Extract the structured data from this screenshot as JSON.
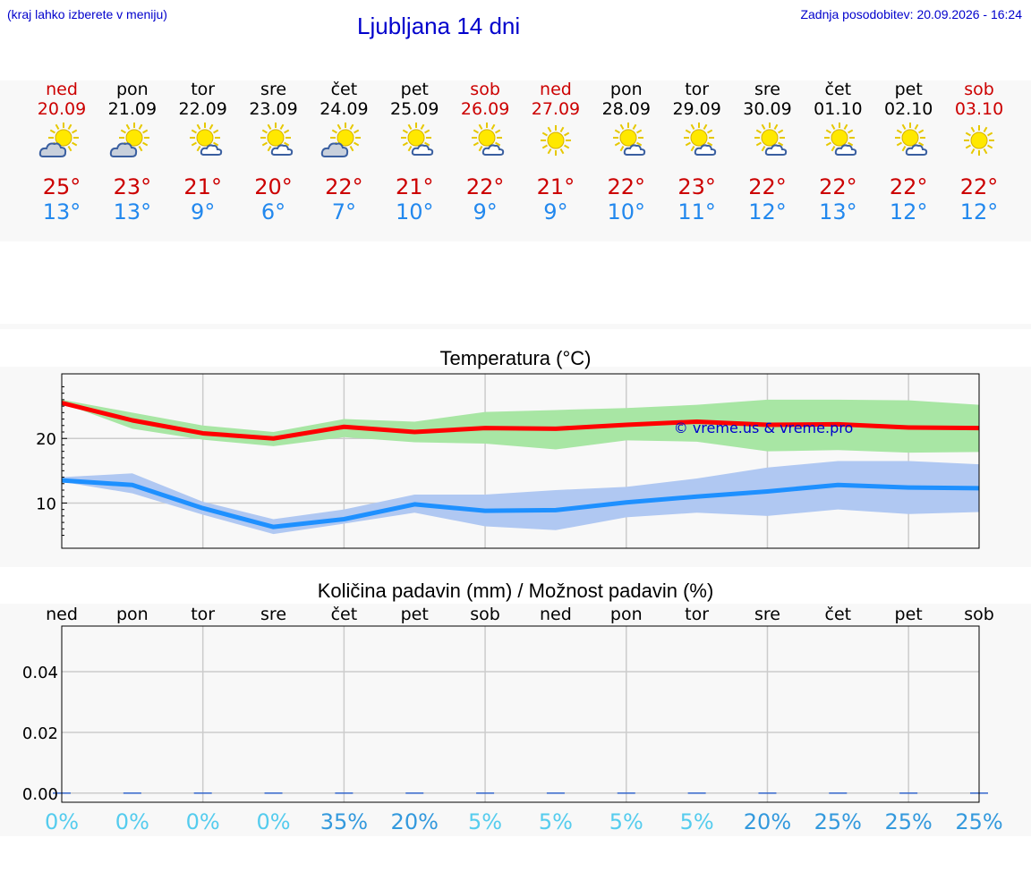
{
  "header": {
    "location_hint": "(kraj lahko izberete v meniju)",
    "title": "Ljubljana 14 dni",
    "updated": "Zadnja posodobitev: 20.09.2026 - 16:24"
  },
  "forecast": [
    {
      "day": "ned",
      "date": "20.09",
      "icon": "cloudy-sun-icon",
      "max": "25°",
      "min": "13°",
      "weekend": true
    },
    {
      "day": "pon",
      "date": "21.09",
      "icon": "cloudy-sun-icon",
      "max": "23°",
      "min": "13°",
      "weekend": false
    },
    {
      "day": "tor",
      "date": "22.09",
      "icon": "partly-cloudy-icon",
      "max": "21°",
      "min": "9°",
      "weekend": false
    },
    {
      "day": "sre",
      "date": "23.09",
      "icon": "partly-cloudy-icon",
      "max": "20°",
      "min": "6°",
      "weekend": false
    },
    {
      "day": "čet",
      "date": "24.09",
      "icon": "cloudy-sun-icon",
      "max": "22°",
      "min": "7°",
      "weekend": false
    },
    {
      "day": "pet",
      "date": "25.09",
      "icon": "partly-cloudy-icon",
      "max": "21°",
      "min": "10°",
      "weekend": false
    },
    {
      "day": "sob",
      "date": "26.09",
      "icon": "partly-cloudy-icon",
      "max": "22°",
      "min": "9°",
      "weekend": true
    },
    {
      "day": "ned",
      "date": "27.09",
      "icon": "sun-icon",
      "max": "21°",
      "min": "9°",
      "weekend": true
    },
    {
      "day": "pon",
      "date": "28.09",
      "icon": "partly-cloudy-icon",
      "max": "22°",
      "min": "10°",
      "weekend": false
    },
    {
      "day": "tor",
      "date": "29.09",
      "icon": "partly-cloudy-icon",
      "max": "23°",
      "min": "11°",
      "weekend": false
    },
    {
      "day": "sre",
      "date": "30.09",
      "icon": "partly-cloudy-icon",
      "max": "22°",
      "min": "12°",
      "weekend": false
    },
    {
      "day": "čet",
      "date": "01.10",
      "icon": "partly-cloudy-icon",
      "max": "22°",
      "min": "13°",
      "weekend": false
    },
    {
      "day": "pet",
      "date": "02.10",
      "icon": "partly-cloudy-icon",
      "max": "22°",
      "min": "12°",
      "weekend": false
    },
    {
      "day": "sob",
      "date": "03.10",
      "icon": "sun-icon",
      "max": "22°",
      "min": "12°",
      "weekend": true
    }
  ],
  "colors": {
    "max": "#ff0000",
    "min": "#1e90ff",
    "max_band": "#a8e6a4",
    "min_band": "#b0c8f2",
    "weekend": "#cc0000",
    "prob_low": "#55ccee",
    "prob_high": "#3399dd"
  },
  "chart_data": [
    {
      "type": "line",
      "title": "Temperatura (°C)",
      "x": [
        0,
        1,
        2,
        3,
        4,
        5,
        6,
        7,
        8,
        9,
        10,
        11,
        12,
        13
      ],
      "ylim": [
        3,
        30
      ],
      "yticks": [
        10,
        20
      ],
      "grid": true,
      "annotation": "© vreme.us & vreme.pro",
      "series": [
        {
          "role": "max",
          "values": [
            25.5,
            22.8,
            20.8,
            20.0,
            21.8,
            21.0,
            21.6,
            21.5,
            22.1,
            22.6,
            22.1,
            22.2,
            21.7,
            21.6
          ],
          "low": [
            25.5,
            21.5,
            19.8,
            18.8,
            20.2,
            19.4,
            19.2,
            18.3,
            19.7,
            19.5,
            18.0,
            18.2,
            17.8,
            17.9
          ],
          "high": [
            26.0,
            24.0,
            22.0,
            21.0,
            23.0,
            22.6,
            24.1,
            24.4,
            24.7,
            25.2,
            26.0,
            26.0,
            25.9,
            25.2
          ]
        },
        {
          "role": "min",
          "values": [
            13.5,
            12.8,
            9.2,
            6.3,
            7.5,
            9.8,
            8.8,
            8.9,
            10.1,
            11.0,
            11.8,
            12.8,
            12.4,
            12.3
          ],
          "low": [
            13.3,
            11.5,
            8.2,
            5.2,
            6.8,
            8.5,
            6.4,
            5.8,
            7.8,
            8.5,
            8.0,
            9.0,
            8.3,
            8.6
          ],
          "high": [
            14.0,
            14.6,
            10.2,
            7.5,
            9.0,
            11.3,
            11.3,
            12.0,
            12.5,
            13.8,
            15.5,
            16.5,
            16.5,
            16.0
          ]
        }
      ]
    },
    {
      "type": "bar",
      "title": "Količina padavin (mm) / Možnost padavin (%)",
      "categories": [
        "ned",
        "pon",
        "tor",
        "sre",
        "čet",
        "pet",
        "sob",
        "ned",
        "pon",
        "tor",
        "sre",
        "čet",
        "pet",
        "sob"
      ],
      "values": [
        0,
        0,
        0,
        0,
        0,
        0,
        0,
        0,
        0,
        0,
        0,
        0,
        0,
        0
      ],
      "ylim": [
        -0.003,
        0.055
      ],
      "yticks": [
        "0.00",
        "0.02",
        "0.04"
      ],
      "probability": [
        "0%",
        "0%",
        "0%",
        "0%",
        "35%",
        "20%",
        "5%",
        "5%",
        "5%",
        "5%",
        "20%",
        "25%",
        "25%",
        "25%"
      ],
      "grid": true
    }
  ]
}
